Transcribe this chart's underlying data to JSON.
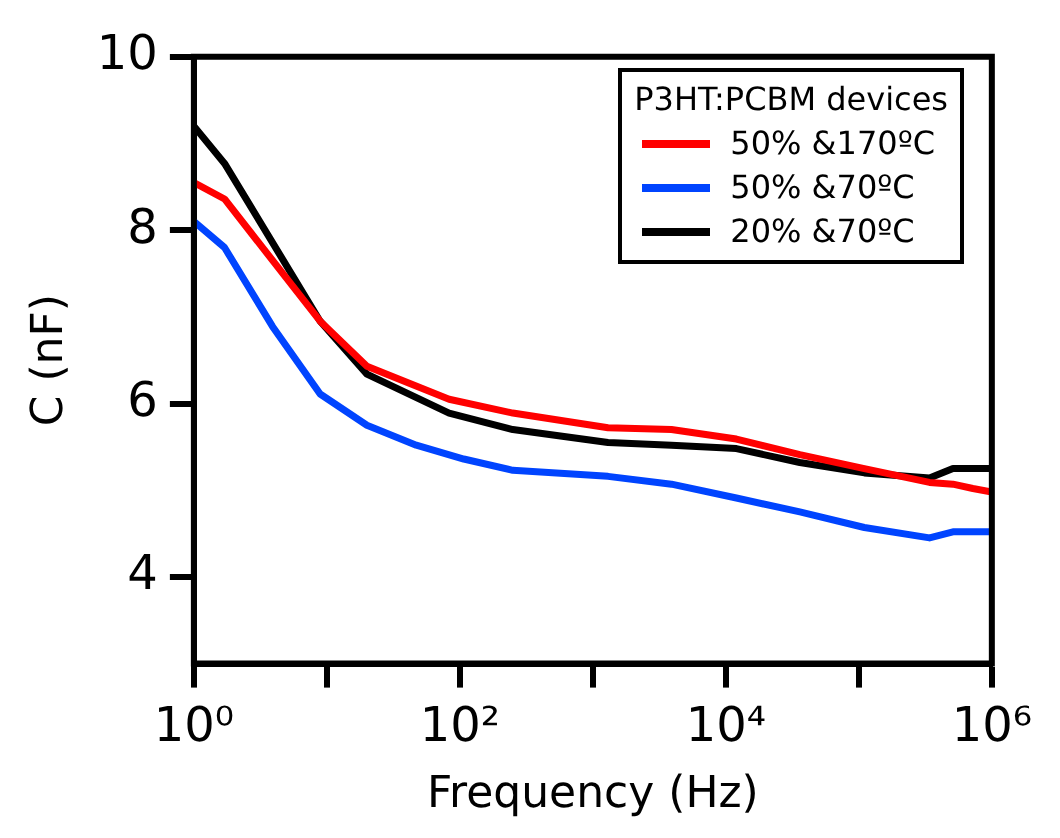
{
  "chart_data": {
    "type": "line",
    "xlabel": "Frequency (Hz)",
    "ylabel": "C (nF)",
    "legend_title": "P3HT:PCBM devices",
    "legend": "top right",
    "log": "x",
    "grid": false,
    "marker": "none",
    "line_style": "solid",
    "xlim": [
      1,
      1000000
    ],
    "xticks": [
      {
        "value": 1,
        "label": "10⁰"
      },
      {
        "value": 10,
        "label": null
      },
      {
        "value": 100,
        "label": "10²"
      },
      {
        "value": 1000,
        "label": null
      },
      {
        "value": 10000,
        "label": "10⁴"
      },
      {
        "value": 100000,
        "label": null
      },
      {
        "value": 1000000,
        "label": "10⁶"
      }
    ],
    "ylim": [
      3,
      10
    ],
    "yticks": [
      4,
      6,
      8,
      10
    ],
    "series": [
      {
        "name": "50% &170ºC",
        "color": "#ff0000",
        "x": [
          1,
          1.7,
          8.9,
          20,
          83,
          250,
          1300,
          3900,
          12000,
          36000,
          110000,
          340000,
          510000,
          720000,
          1000000
        ],
        "values": [
          8.55,
          8.36,
          6.95,
          6.43,
          6.05,
          5.89,
          5.72,
          5.7,
          5.59,
          5.41,
          5.25,
          5.09,
          5.07,
          5.02,
          4.98
        ]
      },
      {
        "name": "50% &70ºC",
        "color": "#0044ff",
        "x": [
          1,
          1.7,
          3.9,
          8.9,
          20,
          47,
          107,
          250,
          1300,
          3900,
          12000,
          36000,
          110000,
          340000,
          510000,
          1000000
        ],
        "values": [
          8.1,
          7.8,
          6.89,
          6.11,
          5.75,
          5.52,
          5.36,
          5.23,
          5.16,
          5.07,
          4.91,
          4.75,
          4.57,
          4.45,
          4.52,
          4.52
        ]
      },
      {
        "name": "20% &70ºC",
        "color": "#000000",
        "x": [
          1,
          1.7,
          8.9,
          20,
          83,
          250,
          1300,
          3900,
          12000,
          36000,
          110000,
          340000,
          510000,
          1000000
        ],
        "values": [
          9.2,
          8.77,
          6.95,
          6.34,
          5.89,
          5.7,
          5.55,
          5.52,
          5.48,
          5.32,
          5.2,
          5.14,
          5.25,
          5.25
        ]
      }
    ]
  }
}
